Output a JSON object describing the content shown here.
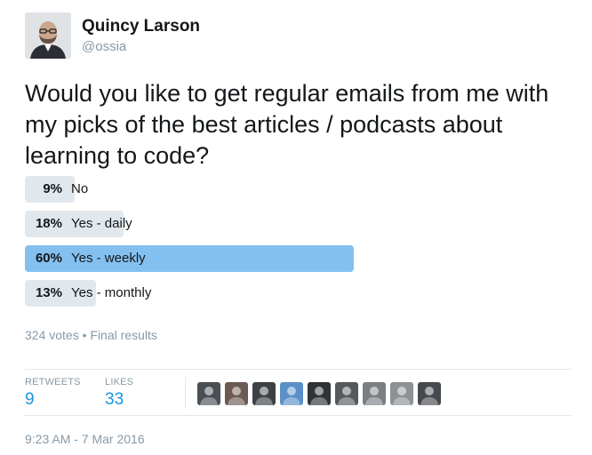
{
  "author": {
    "name": "Quincy Larson",
    "handle": "@ossia"
  },
  "tweet": {
    "text": "Would you like to get regular emails from me with my picks of the best articles / podcasts about learning to code?"
  },
  "poll": {
    "options": [
      {
        "percent_label": "9%",
        "label": "No",
        "percent": 9,
        "winner": false
      },
      {
        "percent_label": "18%",
        "label": "Yes - daily",
        "percent": 18,
        "winner": false
      },
      {
        "percent_label": "60%",
        "label": "Yes - weekly",
        "percent": 60,
        "winner": true
      },
      {
        "percent_label": "13%",
        "label": "Yes - monthly",
        "percent": 13,
        "winner": false
      }
    ],
    "meta": "324 votes • Final results"
  },
  "stats": {
    "retweets_label": "RETWEETS",
    "retweets": "9",
    "likes_label": "LIKES",
    "likes": "33"
  },
  "likers": {
    "count": 9,
    "icon": "liker-avatar-icon"
  },
  "timestamp": "9:23 AM - 7 Mar 2016",
  "colors": {
    "winner_bar": "#84c0ef",
    "bar": "#e1e8ed",
    "link_blue": "#1b95e0",
    "muted": "#8899a6"
  }
}
